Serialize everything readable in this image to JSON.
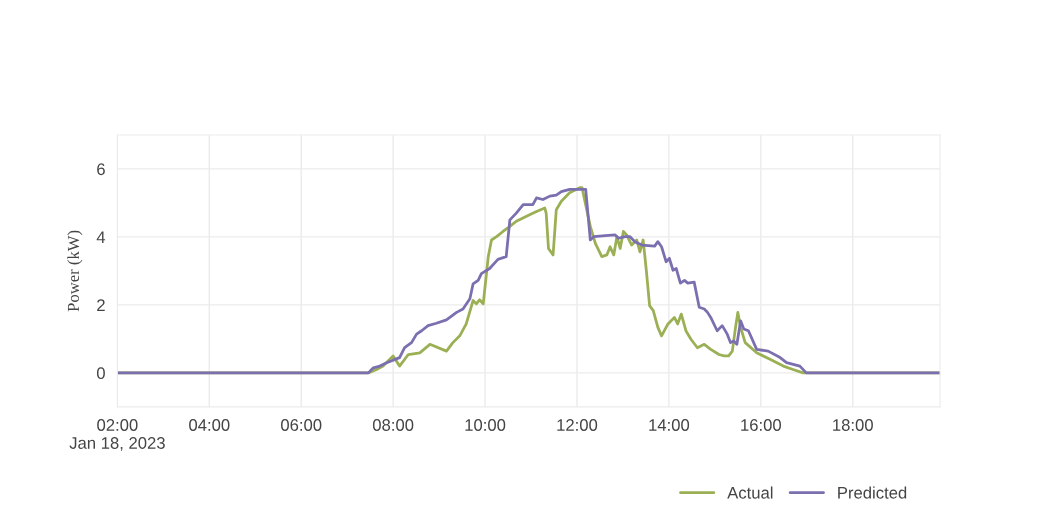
{
  "chart_data": {
    "type": "line",
    "ylabel": "Power (kW)",
    "xlim": [
      2,
      19.9
    ],
    "ylim": [
      -1,
      7
    ],
    "xticks": [
      {
        "value": 2,
        "label": "02:00\nJan 18, 2023"
      },
      {
        "value": 4,
        "label": "04:00"
      },
      {
        "value": 6,
        "label": "06:00"
      },
      {
        "value": 8,
        "label": "08:00"
      },
      {
        "value": 10,
        "label": "10:00"
      },
      {
        "value": 12,
        "label": "12:00"
      },
      {
        "value": 14,
        "label": "14:00"
      },
      {
        "value": 16,
        "label": "16:00"
      },
      {
        "value": 18,
        "label": "18:00"
      }
    ],
    "yticks": [
      0,
      2,
      4,
      6
    ],
    "grid": true,
    "legend": "bottom right",
    "line_style": "solid",
    "marker": "none",
    "series": [
      {
        "name": "Actual",
        "color": "#9bb055",
        "x": [
          2.0,
          7.46,
          7.64,
          7.78,
          8.0,
          8.14,
          8.33,
          8.58,
          8.8,
          9.16,
          9.3,
          9.45,
          9.59,
          9.74,
          9.81,
          9.88,
          9.96,
          10.07,
          10.14,
          10.25,
          10.39,
          10.54,
          10.68,
          10.97,
          11.12,
          11.3,
          11.33,
          11.38,
          11.48,
          11.55,
          11.66,
          11.84,
          11.99,
          12.06,
          12.11,
          12.29,
          12.4,
          12.54,
          12.65,
          12.72,
          12.8,
          12.87,
          12.94,
          13.01,
          13.08,
          13.19,
          13.3,
          13.37,
          13.44,
          13.51,
          13.58,
          13.66,
          13.76,
          13.84,
          13.98,
          14.12,
          14.19,
          14.27,
          14.37,
          14.48,
          14.62,
          14.77,
          14.91,
          15.09,
          15.2,
          15.3,
          15.38,
          15.45,
          15.5,
          15.56,
          15.66,
          15.91,
          16.2,
          16.49,
          16.7,
          16.92,
          17.49,
          19.9
        ],
        "values": [
          0,
          0,
          0.1,
          0.2,
          0.5,
          0.2,
          0.54,
          0.59,
          0.84,
          0.64,
          0.89,
          1.09,
          1.44,
          2.13,
          2.03,
          2.15,
          2.03,
          3.42,
          3.91,
          4.01,
          4.16,
          4.31,
          4.46,
          4.65,
          4.75,
          4.85,
          4.7,
          3.66,
          3.47,
          4.8,
          5.05,
          5.3,
          5.4,
          5.45,
          5.45,
          4.31,
          3.81,
          3.42,
          3.47,
          3.71,
          3.47,
          4.01,
          3.66,
          4.16,
          4.06,
          3.76,
          3.91,
          3.56,
          3.91,
          3.0,
          1.98,
          1.83,
          1.34,
          1.09,
          1.44,
          1.63,
          1.44,
          1.73,
          1.24,
          0.99,
          0.74,
          0.84,
          0.69,
          0.54,
          0.5,
          0.5,
          0.64,
          1.34,
          1.78,
          1.34,
          0.89,
          0.59,
          0.4,
          0.2,
          0.1,
          0,
          0,
          0
        ]
      },
      {
        "name": "Predicted",
        "color": "#7b6fb0",
        "x": [
          2.0,
          7.46,
          7.57,
          7.71,
          7.86,
          8.14,
          8.25,
          8.4,
          8.51,
          8.62,
          8.76,
          8.94,
          9.16,
          9.38,
          9.52,
          9.67,
          9.74,
          9.85,
          9.92,
          10.1,
          10.28,
          10.46,
          10.54,
          10.68,
          10.83,
          11.04,
          11.12,
          11.26,
          11.41,
          11.55,
          11.66,
          11.84,
          12.13,
          12.19,
          12.29,
          12.37,
          12.62,
          12.83,
          12.9,
          13.05,
          13.15,
          13.26,
          13.41,
          13.69,
          13.76,
          13.84,
          13.94,
          14.01,
          14.09,
          14.16,
          14.25,
          14.34,
          14.41,
          14.55,
          14.66,
          14.77,
          14.84,
          14.91,
          15.05,
          15.16,
          15.27,
          15.34,
          15.41,
          15.48,
          15.56,
          15.63,
          15.73,
          15.91,
          16.16,
          16.42,
          16.56,
          16.85,
          16.99,
          17.49,
          19.9
        ],
        "values": [
          0,
          0,
          0.15,
          0.2,
          0.3,
          0.45,
          0.74,
          0.89,
          1.14,
          1.24,
          1.39,
          1.46,
          1.56,
          1.78,
          1.88,
          2.18,
          2.62,
          2.72,
          2.92,
          3.07,
          3.34,
          3.42,
          4.5,
          4.7,
          4.95,
          4.95,
          5.15,
          5.1,
          5.2,
          5.23,
          5.33,
          5.4,
          5.4,
          5.4,
          3.91,
          4.01,
          4.04,
          4.06,
          3.96,
          4.01,
          4.01,
          3.86,
          3.76,
          3.73,
          3.86,
          3.71,
          3.27,
          3.37,
          3.02,
          3.07,
          2.64,
          2.72,
          2.64,
          2.67,
          1.93,
          1.88,
          1.78,
          1.63,
          1.24,
          1.39,
          1.14,
          0.89,
          0.94,
          0.84,
          1.53,
          1.29,
          1.24,
          0.69,
          0.64,
          0.45,
          0.3,
          0.2,
          0,
          0,
          0
        ]
      }
    ]
  }
}
